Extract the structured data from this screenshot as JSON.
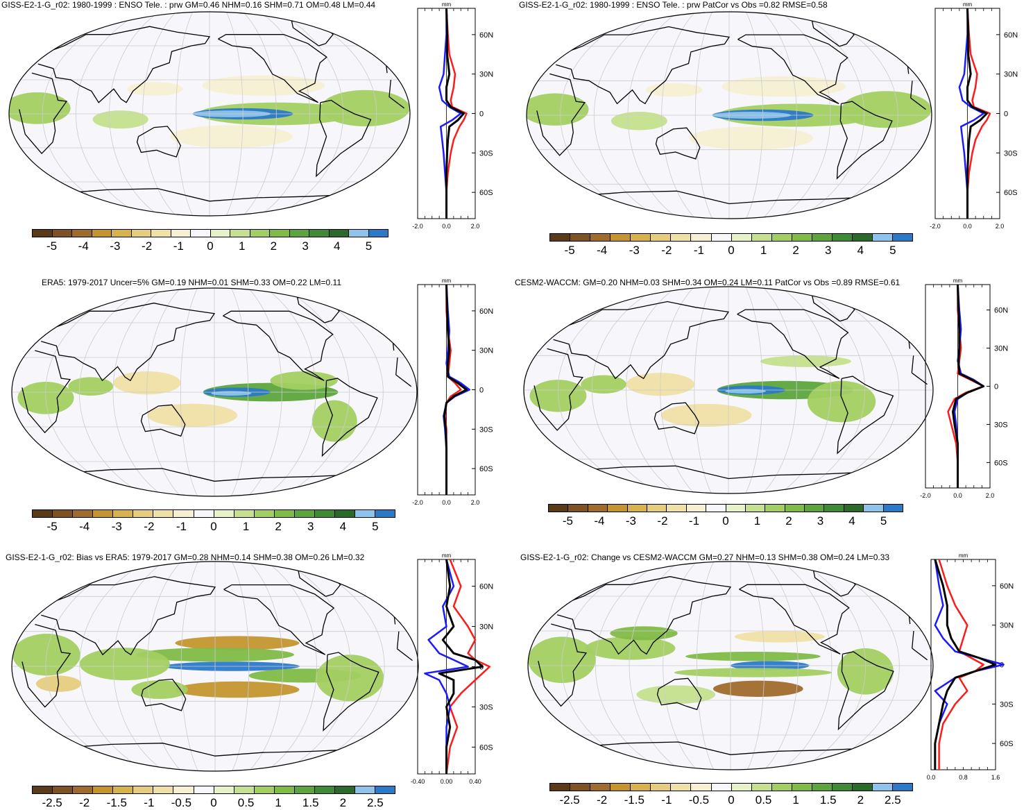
{
  "colors": {
    "palette": [
      "#5b3a17",
      "#7f5223",
      "#a06c2d",
      "#c4952f",
      "#d8b24a",
      "#e6cd7e",
      "#efe0a5",
      "#f6efd2",
      "#f7f7fb",
      "#e8f2c8",
      "#c5e08e",
      "#a3cf62",
      "#7fbb46",
      "#5ca53c",
      "#3f8a34",
      "#2a6b2a",
      "#8ec4ec",
      "#2b79c9"
    ],
    "model": "#ff1a1a",
    "obs": "#1a1aff",
    "mean": "#000000",
    "ocean": "#f6f6fb",
    "land_line": "#000000",
    "grid": "#cccccc"
  },
  "colorbar_full": [
    "-5",
    "-4",
    "-3",
    "-2",
    "-1",
    "0",
    "1",
    "2",
    "3",
    "4",
    "5"
  ],
  "colorbar_half": [
    "-2.5",
    "-2",
    "-1.5",
    "-1",
    "-0.5",
    "0",
    "0.5",
    "1",
    "1.5",
    "2",
    "2.5"
  ],
  "zonal_unit": "mm",
  "lat_labels": [
    "60N",
    "30N",
    "0",
    "30S",
    "60S"
  ],
  "panels": [
    {
      "id": "p1",
      "title": "GISS-E2-1-G_r02: 1980-1999 : ENSO Tele. : prw GM=0.46 NHM=0.16 SHM=0.71 OM=0.48 LM=0.44",
      "xticks": [
        "-2.0",
        "0.0",
        "2.0"
      ]
    },
    {
      "id": "p2",
      "title": "GISS-E2-1-G_r02: 1980-1999 : ENSO Tele. : prw PatCor vs Obs =0.82 RMSE=0.58",
      "xticks": [
        "-2.0",
        "0.0",
        "2.0"
      ]
    },
    {
      "id": "p3",
      "title": "ERA5: 1979-2017 Uncer=5% GM=0.19 NHM=0.01 SHM=0.33 OM=0.22 LM=0.11",
      "xticks": [
        "-2.0",
        "0.0",
        "2.0"
      ]
    },
    {
      "id": "p4",
      "title": "CESM2-WACCM: GM=0.20 NHM=0.03 SHM=0.34 OM=0.24 LM=0.11 PatCor vs Obs =0.89 RMSE=0.61",
      "xticks": [
        "-2.0",
        "0.0",
        "2.0"
      ]
    },
    {
      "id": "p5",
      "title": "GISS-E2-1-G_r02: Bias vs ERA5: 1979-2017 GM=0.28 NHM=0.14 SHM=0.38 OM=0.26 LM=0.32",
      "xticks": [
        "-0.40",
        "0.00",
        "0.40"
      ]
    },
    {
      "id": "p6",
      "title": "GISS-E2-1-G_r02: Change vs CESM2-WACCM GM=0.27 NHM=0.13 SHM=0.38 OM=0.24 LM=0.33",
      "xticks": [
        "0.0",
        "0.8",
        "1.6"
      ]
    }
  ],
  "chart_data": [
    {
      "type": "heatmap",
      "title": "GISS-E2-1-G_r02: 1980-1999 : ENSO Tele. : prw GM=0.46 NHM=0.16 SHM=0.71 OM=0.48 LM=0.44",
      "colorbar": [
        -5,
        -4,
        -3,
        -2,
        -1,
        0,
        1,
        2,
        3,
        4,
        5
      ],
      "zonal": {
        "unit": "mm",
        "xlim": [
          -2.0,
          2.0
        ],
        "lat_ticks": [
          "60N",
          "30N",
          "0",
          "30S",
          "60S"
        ],
        "series": [
          {
            "values_lat": [
              80,
              60,
              45,
              30,
              20,
              10,
              5,
              0,
              -5,
              -10,
              -20,
              -30,
              -45,
              -60,
              -80
            ],
            "values": [
              0.0,
              0.1,
              0.2,
              0.6,
              0.5,
              0.3,
              0.4,
              1.4,
              1.2,
              0.9,
              0.5,
              0.3,
              0.1,
              0.0,
              0.0
            ]
          },
          {
            "values_lat": [
              80,
              60,
              45,
              30,
              20,
              10,
              5,
              0,
              -5,
              -10,
              -20,
              -30,
              -45,
              -60,
              -80
            ],
            "values": [
              0.0,
              0.0,
              -0.1,
              -0.2,
              -0.5,
              -0.3,
              0.2,
              1.0,
              0.4,
              -0.4,
              -0.3,
              -0.2,
              -0.1,
              0.0,
              0.0
            ]
          },
          {
            "values_lat": [
              80,
              60,
              45,
              30,
              20,
              10,
              5,
              0,
              -5,
              -10,
              -20,
              -30,
              -45,
              -60,
              -80
            ],
            "values": [
              0.0,
              0.05,
              0.05,
              0.2,
              0.0,
              0.0,
              0.3,
              1.2,
              0.8,
              0.2,
              0.1,
              0.05,
              0.0,
              0.0,
              0.0
            ]
          }
        ]
      }
    },
    {
      "type": "heatmap",
      "title": "GISS-E2-1-G_r02: 1980-1999 : ENSO Tele. : prw PatCor vs Obs =0.82 RMSE=0.58",
      "colorbar": [
        -5,
        -4,
        -3,
        -2,
        -1,
        0,
        1,
        2,
        3,
        4,
        5
      ],
      "zonal": {
        "unit": "mm",
        "xlim": [
          -2.0,
          2.0
        ],
        "lat_ticks": [
          "60N",
          "30N",
          "0",
          "30S",
          "60S"
        ],
        "series": [
          {
            "values_lat": [
              80,
              60,
              45,
              30,
              20,
              10,
              5,
              0,
              -5,
              -10,
              -20,
              -30,
              -45,
              -60,
              -80
            ],
            "values": [
              0.0,
              0.1,
              0.2,
              0.6,
              0.5,
              0.3,
              0.4,
              1.4,
              1.2,
              0.9,
              0.5,
              0.3,
              0.1,
              0.0,
              0.0
            ]
          },
          {
            "values_lat": [
              80,
              60,
              45,
              30,
              20,
              10,
              5,
              0,
              -5,
              -10,
              -20,
              -30,
              -45,
              -60,
              -80
            ],
            "values": [
              0.0,
              0.0,
              -0.1,
              -0.2,
              -0.5,
              -0.3,
              0.2,
              1.0,
              0.4,
              -0.4,
              -0.3,
              -0.2,
              -0.1,
              0.0,
              0.0
            ]
          },
          {
            "values_lat": [
              80,
              60,
              45,
              30,
              20,
              10,
              5,
              0,
              -5,
              -10,
              -20,
              -30,
              -45,
              -60,
              -80
            ],
            "values": [
              0.0,
              0.05,
              0.05,
              0.2,
              0.0,
              0.0,
              0.3,
              1.2,
              0.8,
              0.2,
              0.1,
              0.05,
              0.0,
              0.0,
              0.0
            ]
          }
        ]
      }
    },
    {
      "type": "heatmap",
      "title": "ERA5: 1979-2017 Uncer=5% GM=0.19 NHM=0.01 SHM=0.33 OM=0.22 LM=0.11",
      "colorbar": [
        -5,
        -4,
        -3,
        -2,
        -1,
        0,
        1,
        2,
        3,
        4,
        5
      ],
      "zonal": {
        "unit": "mm",
        "xlim": [
          -2.0,
          2.0
        ],
        "lat_ticks": [
          "60N",
          "30N",
          "0",
          "30S",
          "60S"
        ],
        "series": [
          {
            "values_lat": [
              80,
              60,
              45,
              30,
              20,
              10,
              5,
              0,
              -5,
              -10,
              -20,
              -30,
              -45,
              -60,
              -80
            ],
            "values": [
              0.0,
              0.0,
              0.1,
              0.3,
              0.2,
              0.1,
              0.6,
              1.0,
              0.3,
              0.0,
              -0.1,
              0.0,
              0.0,
              0.0,
              0.0
            ]
          },
          {
            "values_lat": [
              80,
              60,
              45,
              30,
              20,
              10,
              5,
              0,
              -5,
              -10,
              -20,
              -30,
              -45,
              -60,
              -80
            ],
            "values": [
              0.0,
              0.1,
              0.2,
              0.1,
              0.0,
              0.2,
              1.0,
              1.6,
              0.6,
              0.0,
              -0.2,
              -0.1,
              0.0,
              0.0,
              0.0
            ]
          },
          {
            "values_lat": [
              80,
              60,
              45,
              30,
              20,
              10,
              5,
              0,
              -5,
              -10,
              -20,
              -30,
              -45,
              -60,
              -80
            ],
            "values": [
              0.0,
              0.05,
              0.1,
              0.2,
              0.1,
              0.1,
              0.8,
              1.4,
              0.5,
              0.0,
              -0.15,
              -0.05,
              0.0,
              0.0,
              0.0
            ]
          }
        ]
      }
    },
    {
      "type": "heatmap",
      "title": "CESM2-WACCM: GM=0.20 NHM=0.03 SHM=0.34 OM=0.24 LM=0.11 PatCor vs Obs =0.89 RMSE=0.61",
      "colorbar": [
        -5,
        -4,
        -3,
        -2,
        -1,
        0,
        1,
        2,
        3,
        4,
        5
      ],
      "zonal": {
        "unit": "mm",
        "xlim": [
          -2.0,
          2.0
        ],
        "lat_ticks": [
          "60N",
          "30N",
          "0",
          "30S",
          "60S"
        ],
        "series": [
          {
            "values_lat": [
              80,
              60,
              45,
              30,
              20,
              10,
              5,
              0,
              -5,
              -10,
              -20,
              -30,
              -45,
              -60,
              -80
            ],
            "values": [
              0.0,
              0.0,
              0.1,
              0.2,
              0.1,
              0.0,
              0.8,
              1.6,
              0.5,
              -0.2,
              -0.6,
              -0.4,
              -0.1,
              0.0,
              0.0
            ]
          },
          {
            "values_lat": [
              80,
              60,
              45,
              30,
              20,
              10,
              5,
              0,
              -5,
              -10,
              -20,
              -30,
              -45,
              -60,
              -80
            ],
            "values": [
              0.0,
              0.1,
              0.2,
              0.1,
              0.0,
              0.2,
              1.0,
              1.6,
              0.6,
              0.0,
              -0.2,
              -0.1,
              0.0,
              0.0,
              0.0
            ]
          },
          {
            "values_lat": [
              80,
              60,
              45,
              30,
              20,
              10,
              5,
              0,
              -5,
              -10,
              -20,
              -30,
              -45,
              -60,
              -80
            ],
            "values": [
              0.0,
              0.05,
              0.1,
              0.1,
              0.05,
              0.1,
              0.9,
              1.6,
              0.6,
              -0.1,
              -0.3,
              -0.2,
              0.0,
              0.0,
              0.0
            ]
          }
        ]
      }
    },
    {
      "type": "heatmap",
      "title": "GISS-E2-1-G_r02: Bias vs ERA5: 1979-2017 GM=0.28 NHM=0.14 SHM=0.38 OM=0.26 LM=0.32",
      "colorbar": [
        -2.5,
        -2,
        -1.5,
        -1,
        -0.5,
        0,
        0.5,
        1,
        1.5,
        2,
        2.5
      ],
      "zonal": {
        "unit": "mm",
        "xlim": [
          -0.4,
          0.4
        ],
        "lat_ticks": [
          "60N",
          "30N",
          "0",
          "30S",
          "60S"
        ],
        "series": [
          {
            "values_lat": [
              80,
              60,
              45,
              30,
              20,
              10,
              5,
              0,
              -5,
              -10,
              -20,
              -30,
              -45,
              -60,
              -80
            ],
            "values": [
              0.05,
              0.2,
              0.1,
              0.3,
              0.4,
              0.3,
              0.4,
              0.6,
              0.5,
              0.4,
              0.2,
              0.05,
              0.15,
              0.05,
              0.0
            ]
          },
          {
            "values_lat": [
              80,
              60,
              45,
              30,
              20,
              10,
              5,
              0,
              -5,
              -10,
              -20,
              -30,
              -45,
              -60,
              -80
            ],
            "values": [
              0.0,
              0.1,
              -0.05,
              0.0,
              -0.25,
              -0.1,
              0.1,
              0.3,
              -0.3,
              -0.1,
              0.0,
              0.05,
              0.0,
              0.0,
              0.0
            ]
          },
          {
            "values_lat": [
              80,
              60,
              45,
              30,
              20,
              10,
              5,
              0,
              -5,
              -10,
              -20,
              -30,
              -45,
              -60,
              -80
            ],
            "values": [
              0.0,
              0.05,
              0.0,
              0.1,
              -0.05,
              0.1,
              0.4,
              0.5,
              -0.1,
              0.1,
              0.1,
              0.0,
              0.05,
              0.0,
              0.0
            ]
          }
        ]
      }
    },
    {
      "type": "heatmap",
      "title": "GISS-E2-1-G_r02: Change vs CESM2-WACCM GM=0.27 NHM=0.13 SHM=0.38 OM=0.24 LM=0.33",
      "colorbar": [
        -2.5,
        -2,
        -1.5,
        -1,
        -0.5,
        0,
        0.5,
        1,
        1.5,
        2,
        2.5
      ],
      "zonal": {
        "unit": "mm",
        "xlim": [
          0.0,
          1.6
        ],
        "lat_ticks": [
          "60N",
          "30N",
          "0",
          "30S",
          "60S"
        ],
        "series": [
          {
            "values_lat": [
              80,
              60,
              45,
              30,
              20,
              10,
              5,
              0,
              -5,
              -10,
              -20,
              -30,
              -45,
              -60,
              -80
            ],
            "values": [
              0.2,
              0.4,
              0.6,
              0.9,
              0.8,
              0.7,
              1.0,
              1.3,
              1.1,
              0.7,
              0.9,
              0.6,
              0.3,
              0.2,
              0.2
            ]
          },
          {
            "values_lat": [
              80,
              60,
              45,
              30,
              20,
              10,
              5,
              0,
              -5,
              -10,
              -20,
              -30,
              -45,
              -60,
              -80
            ],
            "values": [
              0.1,
              0.2,
              0.3,
              0.1,
              0.3,
              0.6,
              1.2,
              1.8,
              1.1,
              0.6,
              0.1,
              0.4,
              0.2,
              0.1,
              0.1
            ]
          },
          {
            "values_lat": [
              80,
              60,
              45,
              30,
              20,
              10,
              5,
              0,
              -5,
              -10,
              -20,
              -30,
              -45,
              -60,
              -80
            ],
            "values": [
              0.1,
              0.3,
              0.4,
              0.4,
              0.5,
              0.7,
              1.2,
              1.6,
              1.1,
              0.6,
              0.4,
              0.3,
              0.2,
              0.1,
              0.1
            ]
          }
        ]
      }
    }
  ]
}
